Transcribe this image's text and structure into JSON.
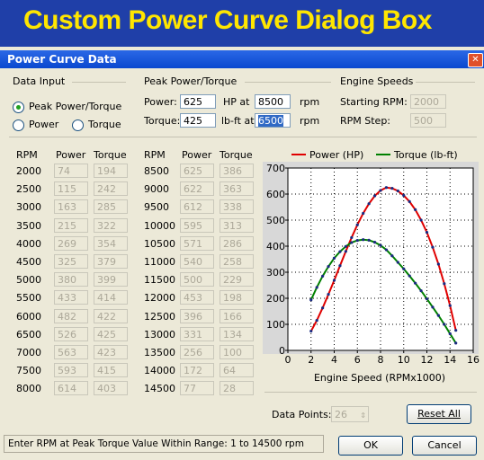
{
  "banner": "Custom Power Curve Dialog Box",
  "window_title": "Power Curve Data",
  "data_input": {
    "label": "Data Input",
    "options": [
      "Peak Power/Torque",
      "Power",
      "Torque"
    ],
    "selected": 0
  },
  "peak": {
    "label": "Peak Power/Torque",
    "power_label": "Power:",
    "power": "625",
    "hp_at": "HP at",
    "power_rpm": "8500",
    "rpm": "rpm",
    "torque_label": "Torque:",
    "torque": "425",
    "lbft_at": "lb-ft at",
    "torque_rpm": "6500"
  },
  "engine_speeds": {
    "label": "Engine Speeds",
    "start_label": "Starting RPM:",
    "start": "2000",
    "step_label": "RPM Step:",
    "step": "500"
  },
  "table": {
    "headers": [
      "RPM",
      "Power",
      "Torque"
    ]
  },
  "chart_data": {
    "type": "line",
    "x": [
      2000,
      2500,
      3000,
      3500,
      4000,
      4500,
      5000,
      5500,
      6000,
      6500,
      7000,
      7500,
      8000,
      8500,
      9000,
      9500,
      10000,
      10500,
      11000,
      11500,
      12000,
      12500,
      13000,
      13500,
      14000,
      14500
    ],
    "series": [
      {
        "name": "Power (HP)",
        "color": "#e00000",
        "values": [
          74,
          115,
          163,
          215,
          269,
          325,
          380,
          433,
          482,
          526,
          563,
          593,
          614,
          625,
          622,
          612,
          595,
          571,
          540,
          500,
          453,
          396,
          331,
          256,
          172,
          77
        ]
      },
      {
        "name": "Torque (lb-ft)",
        "color": "#008000",
        "values": [
          194,
          242,
          285,
          322,
          354,
          379,
          399,
          414,
          422,
          425,
          423,
          415,
          403,
          386,
          363,
          338,
          313,
          286,
          258,
          229,
          198,
          166,
          134,
          100,
          64,
          28
        ]
      }
    ],
    "xlabel": "Engine Speed  (RPMx1000)",
    "xlim": [
      0,
      16000
    ],
    "xticks": [
      0,
      {
        "value": 2000,
        "label": "2"
      },
      {
        "value": 4000,
        "label": "4"
      },
      {
        "value": 6000,
        "label": "6"
      },
      {
        "value": 8000,
        "label": "8"
      },
      {
        "value": 10000,
        "label": "10"
      },
      {
        "value": 12000,
        "label": "12"
      },
      {
        "value": 14000,
        "label": "14"
      },
      {
        "value": 16000,
        "label": "16"
      }
    ],
    "ylim": [
      0,
      700
    ],
    "yticks": [
      0,
      100,
      200,
      300,
      400,
      500,
      600,
      700
    ],
    "grid": true
  },
  "data_points": {
    "label": "Data Points:",
    "value": "26"
  },
  "buttons": {
    "reset": "Reset All",
    "ok": "OK",
    "cancel": "Cancel"
  },
  "status": "Enter RPM at Peak Torque Value Within Range: 1 to 14500 rpm"
}
